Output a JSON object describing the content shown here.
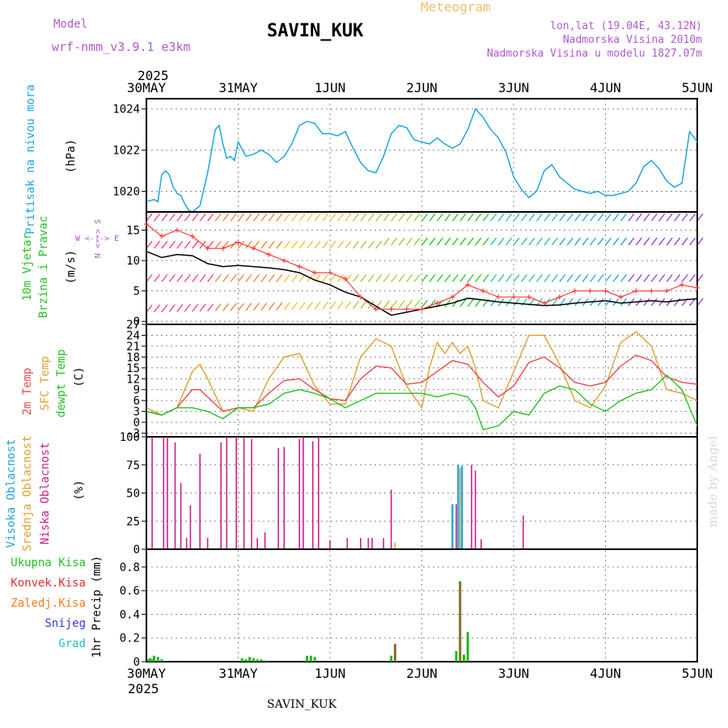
{
  "header": {
    "model_label": "Model",
    "model_name": "wrf-nmm_v3.9.1 e3km",
    "station": "SAVIN_KUK",
    "meteogram": "Meteogram",
    "lonlat": "lon,lat (19.04E, 43.12N)",
    "altitude": "Nadmorska Visina 2010m",
    "model_altitude": "Nadmorska Visina u modelu 1827.07m",
    "year_top": "2025",
    "year_bottom": "2025",
    "footer_station": "SAVIN_KUK",
    "watermark": "made by Angel"
  },
  "colors": {
    "pressure": "#1ca6e0",
    "wind_speed": "#000000",
    "gust": "#ff3b3b",
    "temp2m": "#e84a4a",
    "sfc_temp": "#e0a030",
    "dewpoint": "#22c322",
    "high_cloud": "#1ca6e0",
    "mid_cloud": "#e0a030",
    "low_cloud": "#cc1f8a",
    "total_precip": "#22b522",
    "conv_precip": "#e03030",
    "frozen_precip": "#ff7a1a",
    "snow": "#3838e0",
    "hail": "#20c0c0"
  },
  "chart_data": {
    "x_dates": [
      "30MAY",
      "31MAY",
      "1JUN",
      "2JUN",
      "3JUN",
      "4JUN",
      "5JUN"
    ],
    "x_range_hours": [
      0,
      144
    ],
    "panels": [
      {
        "id": "pressure",
        "type": "line",
        "ylabel_colored": "Pritisak na nivou mora",
        "ylabel_unit": "(hPa)",
        "yticks": [
          1020,
          1022,
          1024
        ],
        "ylim": [
          1019,
          1024.5
        ],
        "series": [
          {
            "name": "Pritisak na nivou mora",
            "x": [
              0,
              2,
              3,
              4,
              5,
              6,
              7,
              8,
              9,
              10,
              11,
              12,
              14,
              16,
              18,
              19,
              20,
              21,
              22,
              23,
              24,
              26,
              28,
              30,
              32,
              34,
              36,
              38,
              40,
              42,
              44,
              46,
              48,
              50,
              52,
              54,
              56,
              58,
              60,
              62,
              64,
              66,
              68,
              70,
              72,
              74,
              76,
              78,
              80,
              82,
              84,
              86,
              88,
              90,
              92,
              94,
              96,
              98,
              100,
              102,
              104,
              106,
              108,
              110,
              112,
              114,
              116,
              118,
              120,
              122,
              124,
              126,
              128,
              130,
              132,
              134,
              136,
              138,
              140,
              142,
              144
            ],
            "values": [
              1019.5,
              1019.6,
              1019.5,
              1020.8,
              1021.0,
              1020.8,
              1020.2,
              1019.9,
              1019.8,
              1019.4,
              1019.1,
              1019.0,
              1019.3,
              1020.9,
              1023.0,
              1023.2,
              1022.3,
              1021.6,
              1021.7,
              1021.5,
              1022.4,
              1021.7,
              1021.8,
              1022.0,
              1021.8,
              1021.4,
              1021.7,
              1022.3,
              1023.2,
              1023.4,
              1023.3,
              1022.8,
              1022.8,
              1022.7,
              1022.9,
              1022.1,
              1021.4,
              1021.0,
              1020.9,
              1021.7,
              1022.8,
              1023.2,
              1023.1,
              1022.5,
              1022.4,
              1022.3,
              1022.6,
              1022.3,
              1022.1,
              1022.3,
              1023.0,
              1024.0,
              1023.6,
              1023.0,
              1022.6,
              1021.9,
              1020.7,
              1020.1,
              1019.7,
              1020.0,
              1021.0,
              1021.3,
              1020.7,
              1020.4,
              1020.1,
              1020.0,
              1019.9,
              1020.0,
              1019.8,
              1019.8,
              1019.9,
              1020.0,
              1020.4,
              1021.2,
              1021.5,
              1021.1,
              1020.5,
              1020.2,
              1020.4,
              1022.9,
              1022.4
            ]
          }
        ]
      },
      {
        "id": "wind",
        "type": "line",
        "ylabel_colored_1": "10m Vjetar",
        "ylabel_colored_2": "Brzina i Pravac",
        "ylabel_unit": "(m/s)",
        "compass_ns": "N <--> S",
        "compass_we": "W <-|-> E",
        "yticks": [
          0,
          5,
          10,
          15
        ],
        "ylim": [
          -0.5,
          18
        ],
        "series": [
          {
            "name": "Brzina vjetra",
            "x": [
              0,
              4,
              8,
              12,
              16,
              20,
              24,
              28,
              32,
              36,
              40,
              44,
              48,
              52,
              56,
              60,
              64,
              68,
              72,
              76,
              80,
              84,
              88,
              92,
              96,
              100,
              104,
              108,
              112,
              116,
              120,
              124,
              128,
              132,
              136,
              140,
              144
            ],
            "values": [
              11.5,
              10.5,
              11.0,
              10.8,
              9.5,
              9.0,
              9.2,
              9.0,
              8.8,
              8.5,
              8.0,
              6.8,
              6.0,
              4.8,
              4.0,
              2.5,
              1.0,
              1.5,
              2.0,
              2.5,
              3.0,
              3.8,
              3.5,
              3.2,
              3.0,
              2.8,
              2.6,
              2.7,
              3.0,
              3.2,
              3.4,
              3.0,
              3.2,
              3.4,
              3.2,
              3.5,
              3.7
            ]
          },
          {
            "name": "Udari vjetra",
            "x": [
              0,
              4,
              8,
              12,
              16,
              20,
              24,
              28,
              32,
              36,
              40,
              44,
              48,
              52,
              56,
              60,
              64,
              68,
              72,
              76,
              80,
              84,
              88,
              92,
              96,
              100,
              104,
              108,
              112,
              116,
              120,
              124,
              128,
              132,
              136,
              140,
              144
            ],
            "values": [
              16,
              14,
              15,
              14,
              12,
              12,
              13,
              12,
              11,
              10,
              9,
              8,
              8,
              7,
              4,
              2,
              2,
              2,
              2,
              3,
              4,
              6,
              5,
              4,
              4,
              4,
              3,
              4,
              5,
              5,
              5,
              4,
              5,
              5,
              5,
              6,
              5.5
            ]
          }
        ]
      },
      {
        "id": "temp",
        "type": "line",
        "ylabel_colored_1": "2m Temp",
        "ylabel_colored_2": "SFC Temp",
        "ylabel_colored_3": "dewpt Temp",
        "ylabel_unit": "(C)",
        "yticks": [
          -3,
          0,
          3,
          6,
          9,
          12,
          15,
          18,
          21,
          24,
          27
        ],
        "ylim": [
          -4,
          27
        ],
        "series": [
          {
            "name": "2m Temp",
            "x": [
              0,
              4,
              8,
              12,
              14,
              16,
              20,
              24,
              28,
              32,
              36,
              40,
              44,
              48,
              52,
              56,
              60,
              64,
              68,
              72,
              76,
              80,
              82,
              84,
              88,
              92,
              96,
              100,
              104,
              108,
              112,
              116,
              120,
              124,
              128,
              132,
              136,
              140,
              144
            ],
            "values": [
              3,
              2,
              4,
              9,
              9,
              7,
              3,
              4,
              4,
              8,
              11.5,
              12,
              9,
              6.5,
              6,
              12,
              15.5,
              15,
              10.5,
              11,
              14,
              17,
              16.5,
              16,
              11,
              7,
              10,
              16.5,
              18,
              15,
              11,
              10,
              11,
              15.5,
              18.5,
              17,
              12.5,
              11,
              10.5
            ]
          },
          {
            "name": "SFC Temp",
            "x": [
              0,
              4,
              8,
              12,
              14,
              16,
              20,
              24,
              28,
              32,
              36,
              40,
              44,
              48,
              52,
              56,
              60,
              64,
              68,
              72,
              74,
              76,
              78,
              80,
              82,
              84,
              86,
              88,
              92,
              96,
              100,
              104,
              108,
              112,
              116,
              120,
              124,
              128,
              132,
              136,
              140,
              144
            ],
            "values": [
              4,
              2,
              4,
              14,
              16,
              12,
              3,
              4,
              3,
              12,
              18,
              19,
              10,
              5,
              5,
              18,
              23,
              21,
              10,
              4,
              15,
              22,
              19,
              22,
              19,
              21,
              15,
              6,
              4,
              14,
              24,
              24,
              16,
              6,
              4,
              10,
              22,
              25,
              21,
              9,
              8,
              6
            ]
          },
          {
            "name": "dewpt Temp",
            "x": [
              0,
              4,
              8,
              12,
              16,
              20,
              24,
              28,
              32,
              36,
              40,
              44,
              48,
              52,
              56,
              60,
              64,
              68,
              72,
              76,
              80,
              84,
              86,
              88,
              92,
              96,
              100,
              104,
              108,
              112,
              116,
              120,
              124,
              128,
              132,
              136,
              140,
              144
            ],
            "values": [
              3,
              2,
              4,
              4,
              3,
              1,
              4,
              4,
              5,
              8,
              9,
              8,
              6.5,
              4,
              6,
              8,
              8,
              8,
              8,
              7,
              8,
              7,
              4,
              -2,
              -1,
              3,
              2,
              8,
              10,
              9,
              5,
              3,
              6,
              8,
              9,
              13,
              9,
              -1
            ]
          }
        ]
      },
      {
        "id": "cloud",
        "type": "bar",
        "ylabel_colored_1": "Visoka Oblacnost",
        "ylabel_colored_2": "Srednja Oblacnost",
        "ylabel_colored_3": "Niska Oblacnost",
        "ylabel_unit": "(%)",
        "yticks": [
          0,
          25,
          50,
          75,
          100
        ],
        "ylim": [
          0,
          100
        ],
        "series": [
          {
            "name": "Niska Oblacnost",
            "x": [
              1.5,
              4.5,
              5.5,
              7.5,
              9,
              10.5,
              11.5,
              14,
              16,
              19.5,
              21,
              23.5,
              25.5,
              27.5,
              29,
              31,
              34.5,
              36,
              40,
              41,
              43.5,
              45,
              48,
              52.5,
              56,
              58,
              59,
              62,
              64,
              80,
              81,
              85,
              86,
              87.5,
              98.5
            ],
            "values": [
              100,
              99,
              100,
              95,
              59,
              10,
              39,
              85,
              10,
              95,
              100,
              100,
              99,
              98,
              10,
              15,
              90,
              91,
              98,
              100,
              96,
              100,
              8,
              10,
              10,
              10,
              10,
              10,
              53,
              10,
              40,
              75,
              70,
              9,
              30
            ]
          },
          {
            "name": "Visoka Oblacnost",
            "x": [
              80,
              81.5,
              82.5
            ],
            "values": [
              40,
              75,
              74
            ]
          },
          {
            "name": "Srednja Oblacnost",
            "x": [
              65,
              82
            ],
            "values": [
              6,
              72
            ]
          }
        ]
      },
      {
        "id": "precip",
        "type": "bar",
        "ylabel_colored_1": "Ukupna Kisa",
        "ylabel_colored_2": "Konvek.Kisa",
        "ylabel_colored_3": "Zaledj.Kisa",
        "ylabel_colored_4": "Snijeg",
        "ylabel_colored_5": "Grad",
        "ylabel_unit": "1hr Precip (mm)",
        "yticks": [
          0,
          0.2,
          0.4,
          0.6,
          0.8
        ],
        "ylim": [
          0,
          0.95
        ],
        "series": [
          {
            "name": "Ukupna Kisa",
            "x": [
              0.5,
              1,
              1.5,
              2,
              3,
              4,
              25,
              26,
              27,
              28,
              29,
              30,
              31,
              42,
              43,
              44,
              64,
              65,
              81,
              82,
              83,
              84
            ],
            "values": [
              0.02,
              0.03,
              0.02,
              0.05,
              0.04,
              0.02,
              0.03,
              0.02,
              0.04,
              0.03,
              0.02,
              0.02,
              0.01,
              0.05,
              0.05,
              0.04,
              0.05,
              0.15,
              0.09,
              0.68,
              0.06,
              0.25
            ]
          },
          {
            "name": "Konvek.Kisa",
            "x": [
              65,
              82
            ],
            "values": [
              0.15,
              0.67
            ]
          }
        ]
      }
    ]
  }
}
